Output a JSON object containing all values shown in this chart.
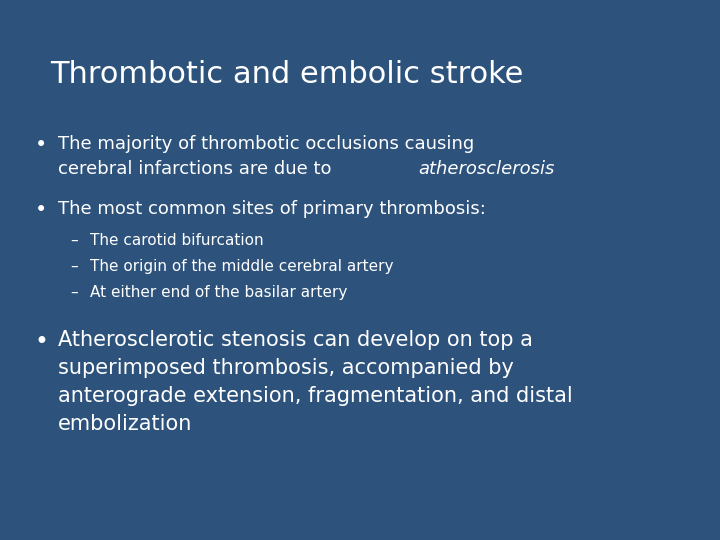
{
  "title": "Thrombotic and embolic stroke",
  "background_color": "#2d527c",
  "text_color": "#ffffff",
  "title_fontsize": 22,
  "body_fontsize": 13,
  "sub_fontsize": 11,
  "bullet3_fontsize": 15,
  "bullet1_line1": "The majority of thrombotic occlusions causing",
  "bullet1_line2_normal": "cerebral infarctions are due to ",
  "bullet1_line2_italic": "atherosclerosis",
  "bullet2": "The most common sites of primary thrombosis:",
  "sub1": "The carotid bifurcation",
  "sub2": "The origin of the middle cerebral artery",
  "sub3": "At either end of the basilar artery",
  "bullet3_line1": "Atherosclerotic stenosis can develop on top a",
  "bullet3_line2": "superimposed thrombosis, accompanied by",
  "bullet3_line3": "anterograde extension, fragmentation, and distal",
  "bullet3_line4": "embolization"
}
